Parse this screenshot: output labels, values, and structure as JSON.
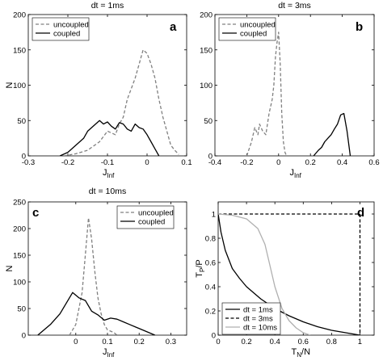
{
  "chart_data": [
    {
      "panel": "a",
      "type": "line",
      "title": "dt = 1ms",
      "xlabel": "J",
      "xlabel_sub": "Inf",
      "ylabel": "N",
      "xlim": [
        -0.3,
        0.1
      ],
      "ylim": [
        0,
        200
      ],
      "xticks": [
        -0.3,
        -0.2,
        -0.1,
        0,
        0.1
      ],
      "xtick_labels": [
        "-0.3",
        "-0.2",
        "-0.1",
        "0",
        "0.1"
      ],
      "yticks": [
        0,
        50,
        100,
        150,
        200
      ],
      "ytick_labels": [
        "0",
        "50",
        "100",
        "150",
        "200"
      ],
      "legend": {
        "placement": "top-left",
        "labels": [
          "uncoupled",
          "coupled"
        ]
      },
      "series": [
        {
          "name": "uncoupled",
          "style": "dashed",
          "color": "#808080",
          "x": [
            -0.21,
            -0.18,
            -0.15,
            -0.12,
            -0.1,
            -0.08,
            -0.07,
            -0.06,
            -0.05,
            -0.04,
            -0.03,
            -0.02,
            -0.01,
            0.0,
            0.01,
            0.02,
            0.03,
            0.04,
            0.05,
            0.06,
            0.07,
            0.08
          ],
          "y": [
            0,
            3,
            8,
            20,
            35,
            30,
            45,
            55,
            80,
            95,
            110,
            130,
            150,
            145,
            130,
            110,
            80,
            55,
            35,
            15,
            8,
            2
          ]
        },
        {
          "name": "coupled",
          "style": "solid",
          "color": "#000000",
          "x": [
            -0.22,
            -0.2,
            -0.18,
            -0.16,
            -0.15,
            -0.14,
            -0.13,
            -0.12,
            -0.11,
            -0.1,
            -0.09,
            -0.08,
            -0.07,
            -0.06,
            -0.05,
            -0.04,
            -0.03,
            -0.02,
            -0.01,
            0.0,
            0.01,
            0.02,
            0.03
          ],
          "y": [
            0,
            5,
            15,
            25,
            35,
            40,
            45,
            50,
            45,
            48,
            42,
            38,
            47,
            45,
            38,
            35,
            45,
            40,
            38,
            30,
            20,
            10,
            0
          ]
        }
      ]
    },
    {
      "panel": "b",
      "type": "line",
      "title": "dt = 3ms",
      "xlabel": "J",
      "xlabel_sub": "Inf",
      "ylabel": "",
      "xlim": [
        -0.4,
        0.6
      ],
      "ylim": [
        0,
        200
      ],
      "xticks": [
        -0.4,
        -0.2,
        0,
        0.2,
        0.4,
        0.6
      ],
      "xtick_labels": [
        "-0.4",
        "-0.2",
        "0",
        "0.2",
        "0.4",
        "0.6"
      ],
      "yticks": [
        0,
        50,
        100,
        150,
        200
      ],
      "ytick_labels": [
        "0",
        "50",
        "100",
        "150",
        "200"
      ],
      "legend": {
        "placement": "top-left",
        "labels": [
          "uncoupled",
          "coupled"
        ]
      },
      "series": [
        {
          "name": "uncoupled",
          "style": "dashed",
          "color": "#808080",
          "x": [
            -0.2,
            -0.17,
            -0.15,
            -0.13,
            -0.12,
            -0.1,
            -0.08,
            -0.06,
            -0.04,
            -0.03,
            -0.02,
            -0.01,
            0.0,
            0.01,
            0.02,
            0.03,
            0.04,
            0.05
          ],
          "y": [
            0,
            20,
            40,
            30,
            45,
            35,
            30,
            60,
            80,
            100,
            140,
            160,
            175,
            130,
            60,
            20,
            5,
            0
          ]
        },
        {
          "name": "coupled",
          "style": "solid",
          "color": "#000000",
          "x": [
            0.22,
            0.25,
            0.27,
            0.29,
            0.31,
            0.33,
            0.35,
            0.37,
            0.39,
            0.41,
            0.43,
            0.45
          ],
          "y": [
            0,
            8,
            12,
            20,
            25,
            30,
            38,
            45,
            58,
            60,
            35,
            0
          ]
        }
      ]
    },
    {
      "panel": "c",
      "type": "line",
      "title": "dt = 10ms",
      "xlabel": "J",
      "xlabel_sub": "Inf",
      "ylabel": "N",
      "xlim": [
        -0.15,
        0.35
      ],
      "ylim": [
        0,
        250
      ],
      "xticks": [
        0,
        0.1,
        0.2,
        0.3
      ],
      "xtick_labels": [
        "0",
        "0.1",
        "0.2",
        "0.3"
      ],
      "yticks": [
        0,
        50,
        100,
        150,
        200,
        250
      ],
      "ytick_labels": [
        "0",
        "50",
        "100",
        "150",
        "200",
        "250"
      ],
      "legend": {
        "placement": "top-right",
        "labels": [
          "uncoupled",
          "coupled"
        ]
      },
      "series": [
        {
          "name": "uncoupled",
          "style": "dashed",
          "color": "#808080",
          "x": [
            -0.02,
            0.0,
            0.02,
            0.03,
            0.04,
            0.05,
            0.06,
            0.07,
            0.08,
            0.09,
            0.1,
            0.12,
            0.13
          ],
          "y": [
            0,
            20,
            80,
            150,
            220,
            180,
            120,
            70,
            40,
            20,
            10,
            5,
            0
          ]
        },
        {
          "name": "coupled",
          "style": "solid",
          "color": "#000000",
          "x": [
            -0.12,
            -0.08,
            -0.05,
            -0.03,
            -0.01,
            0.0,
            0.01,
            0.03,
            0.05,
            0.07,
            0.09,
            0.11,
            0.13,
            0.15,
            0.17,
            0.19,
            0.21,
            0.25
          ],
          "y": [
            0,
            20,
            40,
            60,
            80,
            75,
            70,
            65,
            45,
            38,
            28,
            32,
            30,
            25,
            20,
            15,
            10,
            0
          ]
        }
      ]
    },
    {
      "panel": "d",
      "type": "line",
      "title": "",
      "xlabel": "T",
      "xlabel_sub": "N",
      "xlabel_suffix": "/N",
      "ylabel": "T",
      "ylabel_sub": "P",
      "ylabel_suffix": "/P",
      "xlim": [
        0,
        1.1
      ],
      "ylim": [
        0,
        1.1
      ],
      "xticks": [
        0,
        0.2,
        0.4,
        0.6,
        0.8,
        1
      ],
      "xtick_labels": [
        "0",
        "0.2",
        "0.4",
        "0.6",
        "0.8",
        "1"
      ],
      "yticks": [
        0,
        0.2,
        0.4,
        0.6,
        0.8,
        1
      ],
      "ytick_labels": [
        "0",
        "0.2",
        "0.4",
        "0.6",
        "0.8",
        "1"
      ],
      "legend": {
        "placement": "bottom-left",
        "labels": [
          "dt = 1ms",
          "dt = 3ms",
          "dt = 10ms"
        ]
      },
      "series": [
        {
          "name": "dt = 1ms",
          "style": "solid",
          "color": "#000000",
          "x": [
            0,
            0.02,
            0.05,
            0.1,
            0.15,
            0.2,
            0.3,
            0.4,
            0.5,
            0.6,
            0.7,
            0.8,
            0.9,
            1.0
          ],
          "y": [
            1.0,
            0.85,
            0.7,
            0.55,
            0.47,
            0.4,
            0.3,
            0.22,
            0.16,
            0.11,
            0.07,
            0.04,
            0.02,
            0.0
          ]
        },
        {
          "name": "dt = 3ms",
          "style": "dashed",
          "color": "#000000",
          "x": [
            0,
            1.0,
            1.0
          ],
          "y": [
            1.0,
            1.0,
            0.0
          ]
        },
        {
          "name": "dt = 10ms",
          "style": "solid",
          "color": "#b0b0b0",
          "x": [
            0,
            0.1,
            0.2,
            0.28,
            0.33,
            0.36,
            0.4,
            0.45,
            0.5,
            0.55,
            0.6,
            0.65
          ],
          "y": [
            1.0,
            0.99,
            0.96,
            0.88,
            0.75,
            0.6,
            0.4,
            0.22,
            0.12,
            0.06,
            0.02,
            0.0
          ]
        }
      ]
    }
  ]
}
